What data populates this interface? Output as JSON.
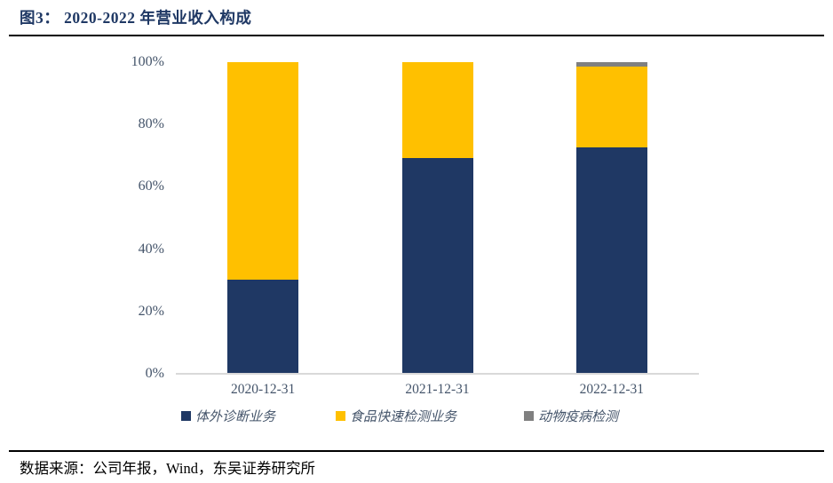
{
  "title": "图3： 2020-2022 年营业收入构成",
  "footer": {
    "source": "数据来源：公司年报，Wind，东吴证券研究所"
  },
  "colors": {
    "title_text": "#1F3864",
    "axis_tick_text": "#44546A",
    "axis_line": "#D9D9D9",
    "divider": "#000000",
    "series_navy": "#1F3864",
    "series_yellow": "#FFC000",
    "series_gray": "#808080"
  },
  "chart_data": {
    "type": "bar",
    "stacked": true,
    "percent_stacked": true,
    "title": "图3： 2020-2022 年营业收入构成",
    "categories": [
      "2020-12-31",
      "2021-12-31",
      "2022-12-31"
    ],
    "series": [
      {
        "name": "体外诊断业务",
        "color": "#1F3864",
        "values": [
          30.2,
          69.1,
          72.6
        ]
      },
      {
        "name": "食品快速检测业务",
        "color": "#FFC000",
        "values": [
          69.8,
          30.9,
          26.1
        ]
      },
      {
        "name": "动物疫病检测",
        "color": "#808080",
        "values": [
          0,
          0,
          1.3
        ]
      }
    ],
    "xlabel": "",
    "ylabel": "",
    "ylim": [
      0,
      100
    ],
    "y_ticks": [
      "0%",
      "20%",
      "40%",
      "60%",
      "80%",
      "100%"
    ],
    "grid": false,
    "legend_position": "bottom"
  }
}
